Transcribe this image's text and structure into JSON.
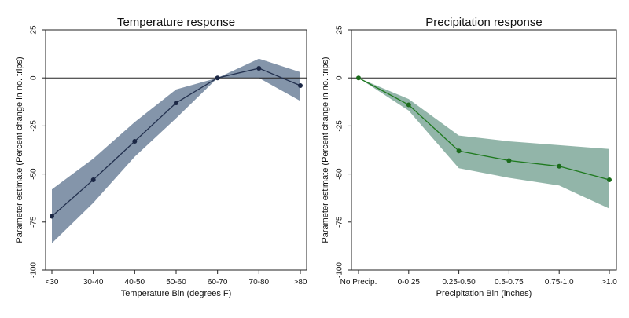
{
  "chart_data": [
    {
      "type": "line",
      "title": "Temperature response",
      "xlabel": "Temperature Bin (degrees F)",
      "ylabel": "Parameter estimate (Percent change in no. trips)",
      "categories": [
        "<30",
        "30-40",
        "40-50",
        "50-60",
        "60-70",
        "70-80",
        ">80"
      ],
      "y_ticks": [
        25,
        0,
        -25,
        -50,
        -75,
        -100
      ],
      "y_tick_labels": [
        "25",
        "0",
        "-25",
        "-50",
        "-75",
        "-100"
      ],
      "ylim": [
        -100,
        25
      ],
      "series": [
        {
          "values": [
            -72,
            -53,
            -33,
            -13,
            0,
            5,
            -4
          ],
          "ci_upper": [
            -58,
            -42,
            -23,
            -6,
            0,
            10,
            3
          ],
          "ci_lower": [
            -86,
            -65,
            -41,
            -21,
            0,
            0,
            -12
          ]
        }
      ],
      "reference_line_y": 0,
      "grid": false,
      "colors": {
        "band": "#6f829b",
        "line": "#23314f",
        "marker": "#1b2745"
      }
    },
    {
      "type": "line",
      "title": "Precipitation response",
      "xlabel": "Precipitation Bin (inches)",
      "ylabel": "Parameter estimate (Percent change in no. trips)",
      "categories": [
        "No Precip.",
        "0-0.25",
        "0.25-0.50",
        "0.5-0.75",
        "0.75-1.0",
        ">1.0"
      ],
      "y_ticks": [
        25,
        0,
        -25,
        -50,
        -75,
        -100
      ],
      "y_tick_labels": [
        "25",
        "0",
        "-25",
        "-50",
        "-75",
        "-100"
      ],
      "ylim": [
        -100,
        25
      ],
      "series": [
        {
          "values": [
            0,
            -14,
            -38,
            -43,
            -46,
            -53
          ],
          "ci_upper": [
            0,
            -11,
            -30,
            -33,
            -35,
            -37
          ],
          "ci_lower": [
            0,
            -17,
            -47,
            -52,
            -56,
            -68
          ]
        }
      ],
      "reference_line_y": 0,
      "grid": false,
      "colors": {
        "band": "#7fa89a",
        "line": "#1f7a1f",
        "marker": "#1b6b1b"
      }
    }
  ]
}
